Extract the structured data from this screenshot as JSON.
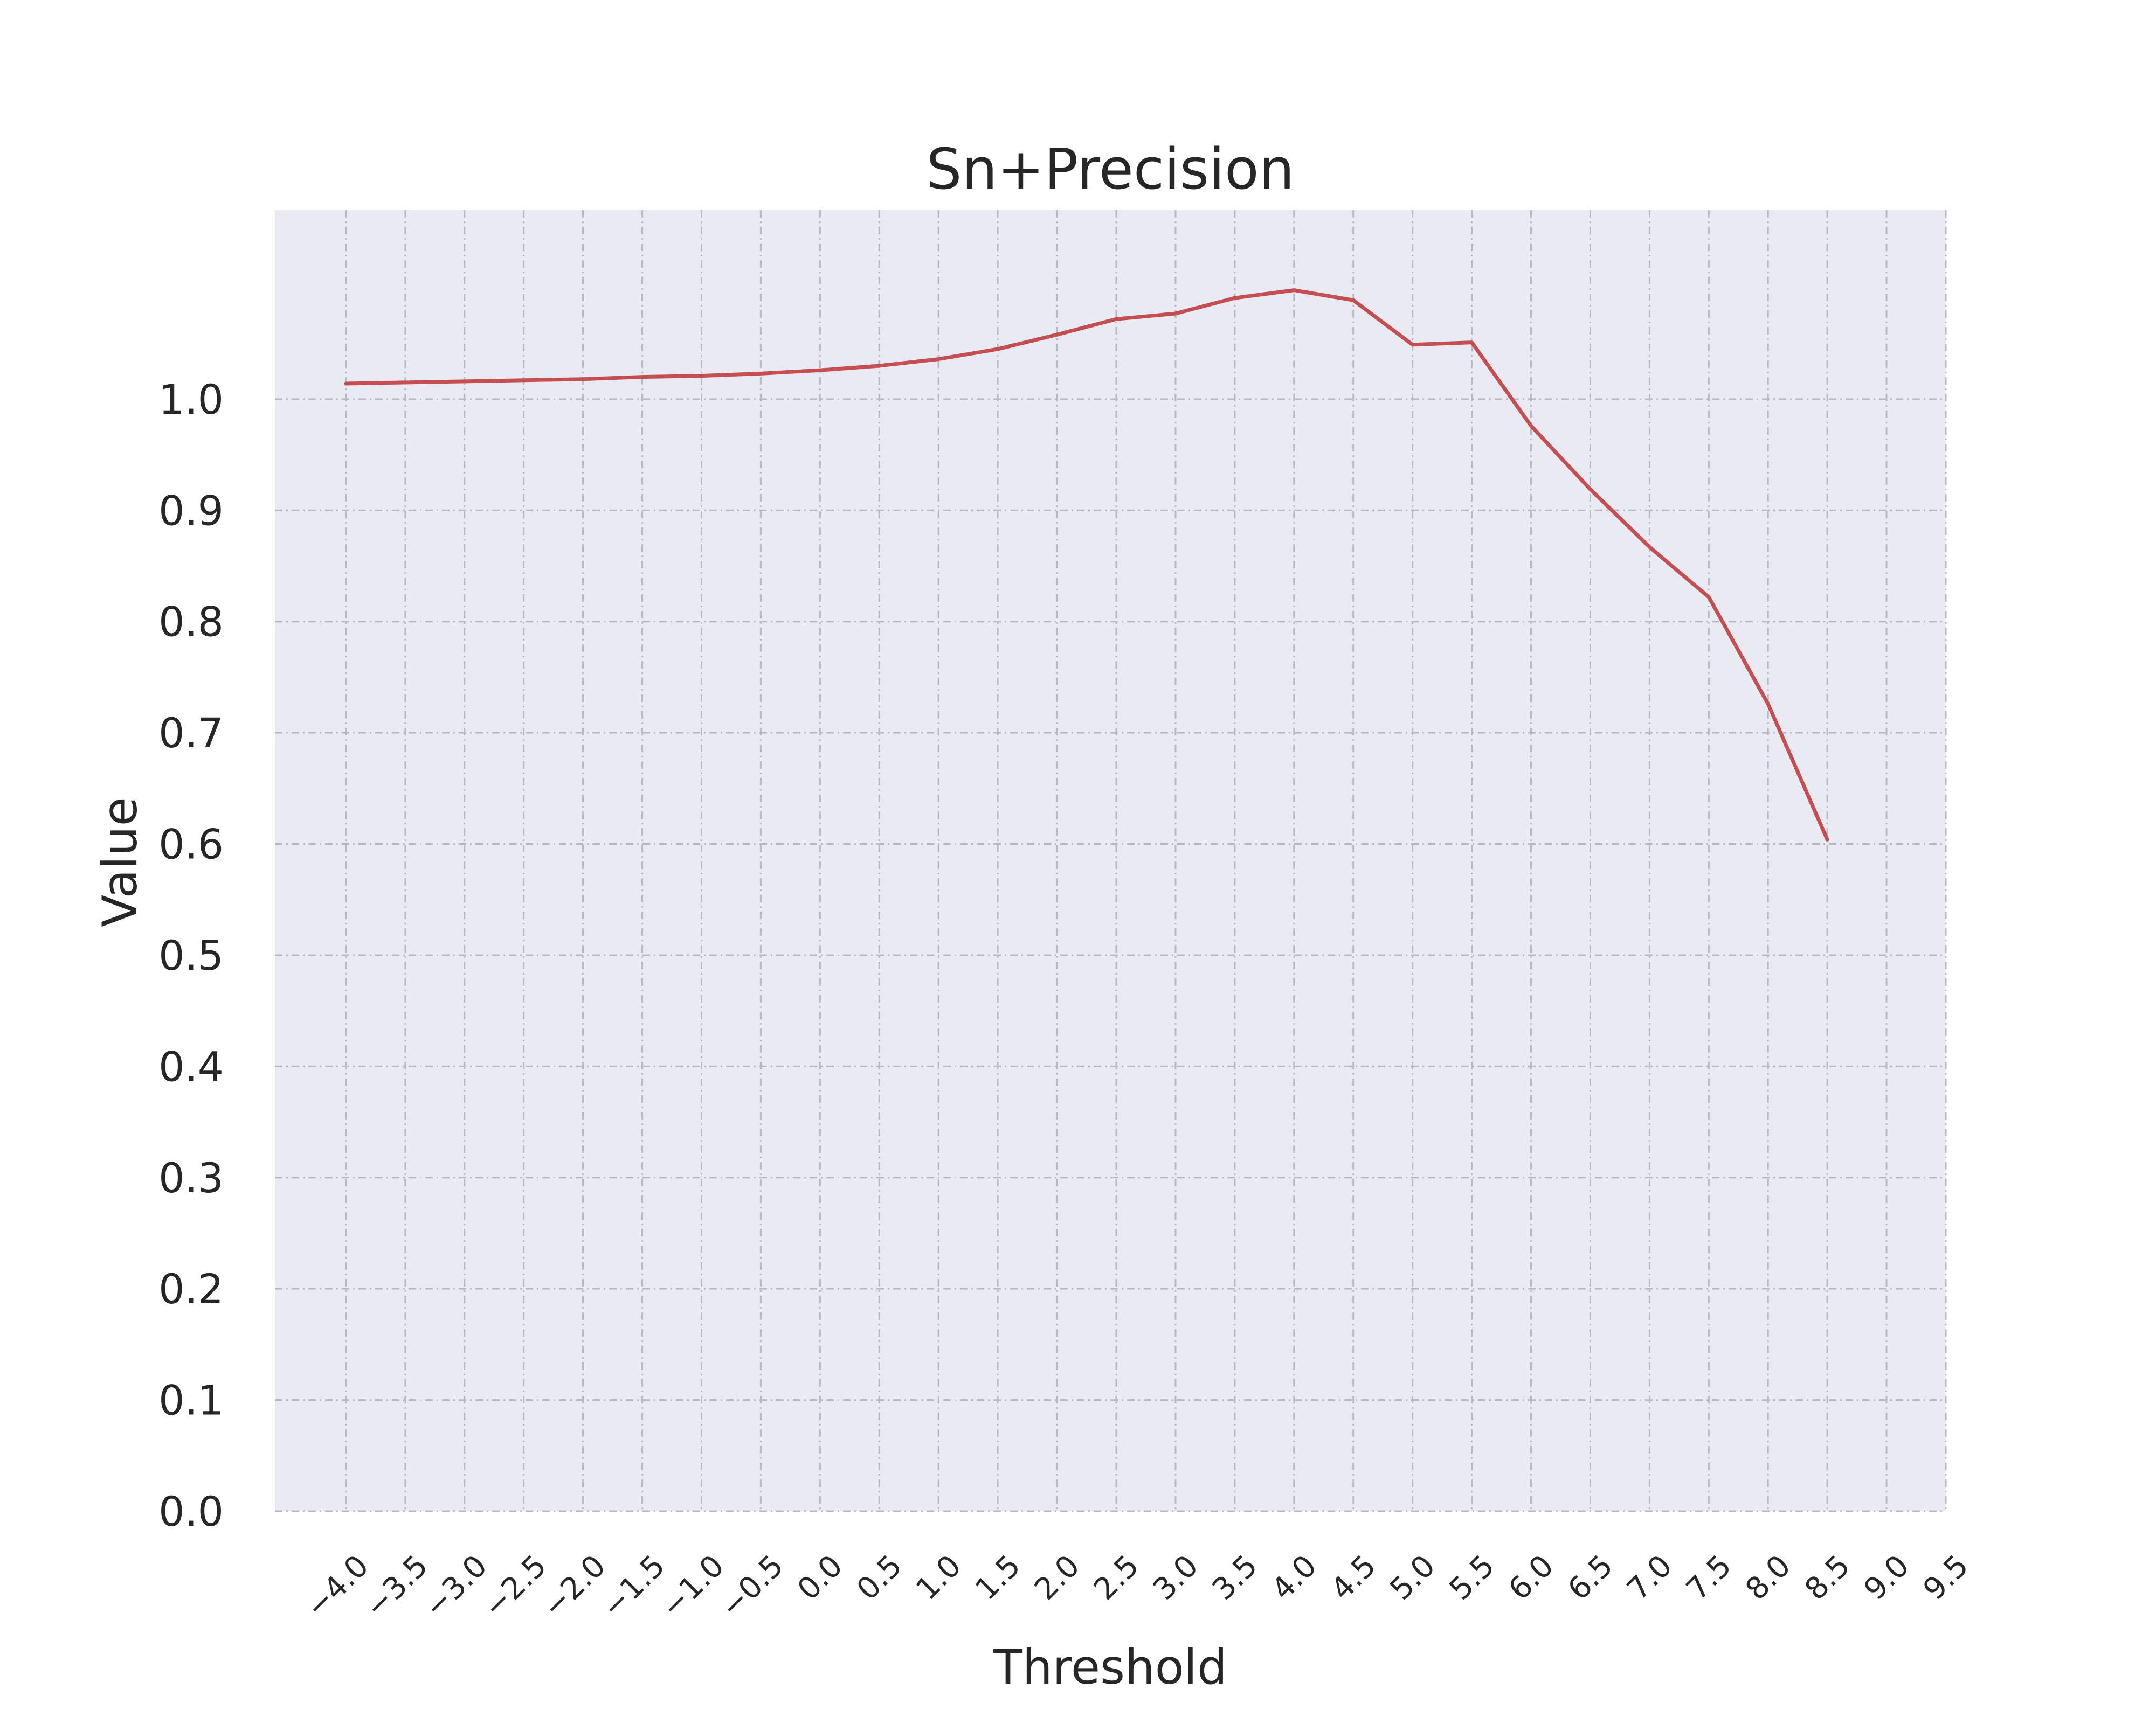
{
  "chart_data": {
    "type": "line",
    "title": "Sn+Precision",
    "xlabel": "Threshold",
    "ylabel": "Value",
    "xlim": [
      -4.6,
      9.5
    ],
    "ylim": [
      0.0,
      1.17
    ],
    "grid": true,
    "x_ticks": [
      "−4.0",
      "−3.5",
      "−3.0",
      "−2.5",
      "−2.0",
      "−1.5",
      "−1.0",
      "−0.5",
      "0.0",
      "0.5",
      "1.0",
      "1.5",
      "2.0",
      "2.5",
      "3.0",
      "3.5",
      "4.0",
      "4.5",
      "5.0",
      "5.5",
      "6.0",
      "6.5",
      "7.0",
      "7.5",
      "8.0",
      "8.5",
      "9.0",
      "9.5"
    ],
    "x_tick_values": [
      -4.0,
      -3.5,
      -3.0,
      -2.5,
      -2.0,
      -1.5,
      -1.0,
      -0.5,
      0.0,
      0.5,
      1.0,
      1.5,
      2.0,
      2.5,
      3.0,
      3.5,
      4.0,
      4.5,
      5.0,
      5.5,
      6.0,
      6.5,
      7.0,
      7.5,
      8.0,
      8.5,
      9.0,
      9.5
    ],
    "y_ticks": [
      "0.0",
      "0.1",
      "0.2",
      "0.3",
      "0.4",
      "0.5",
      "0.6",
      "0.7",
      "0.8",
      "0.9",
      "1.0"
    ],
    "y_tick_values": [
      0.0,
      0.1,
      0.2,
      0.3,
      0.4,
      0.5,
      0.6,
      0.7,
      0.8,
      0.9,
      1.0
    ],
    "series": [
      {
        "color": "#c44e52",
        "x": [
          -4.0,
          -3.5,
          -3.0,
          -2.5,
          -2.0,
          -1.5,
          -1.0,
          -0.5,
          0.0,
          0.5,
          1.0,
          1.5,
          2.0,
          2.5,
          3.0,
          3.5,
          4.0,
          4.5,
          5.0,
          5.5,
          6.0,
          6.5,
          7.0,
          7.5,
          8.0,
          8.5
        ],
        "values": [
          1.014,
          1.015,
          1.016,
          1.017,
          1.018,
          1.02,
          1.021,
          1.023,
          1.026,
          1.03,
          1.036,
          1.045,
          1.058,
          1.072,
          1.077,
          1.091,
          1.098,
          1.089,
          1.049,
          1.051,
          0.976,
          0.919,
          0.867,
          0.822,
          0.726,
          0.604
        ]
      }
    ]
  }
}
